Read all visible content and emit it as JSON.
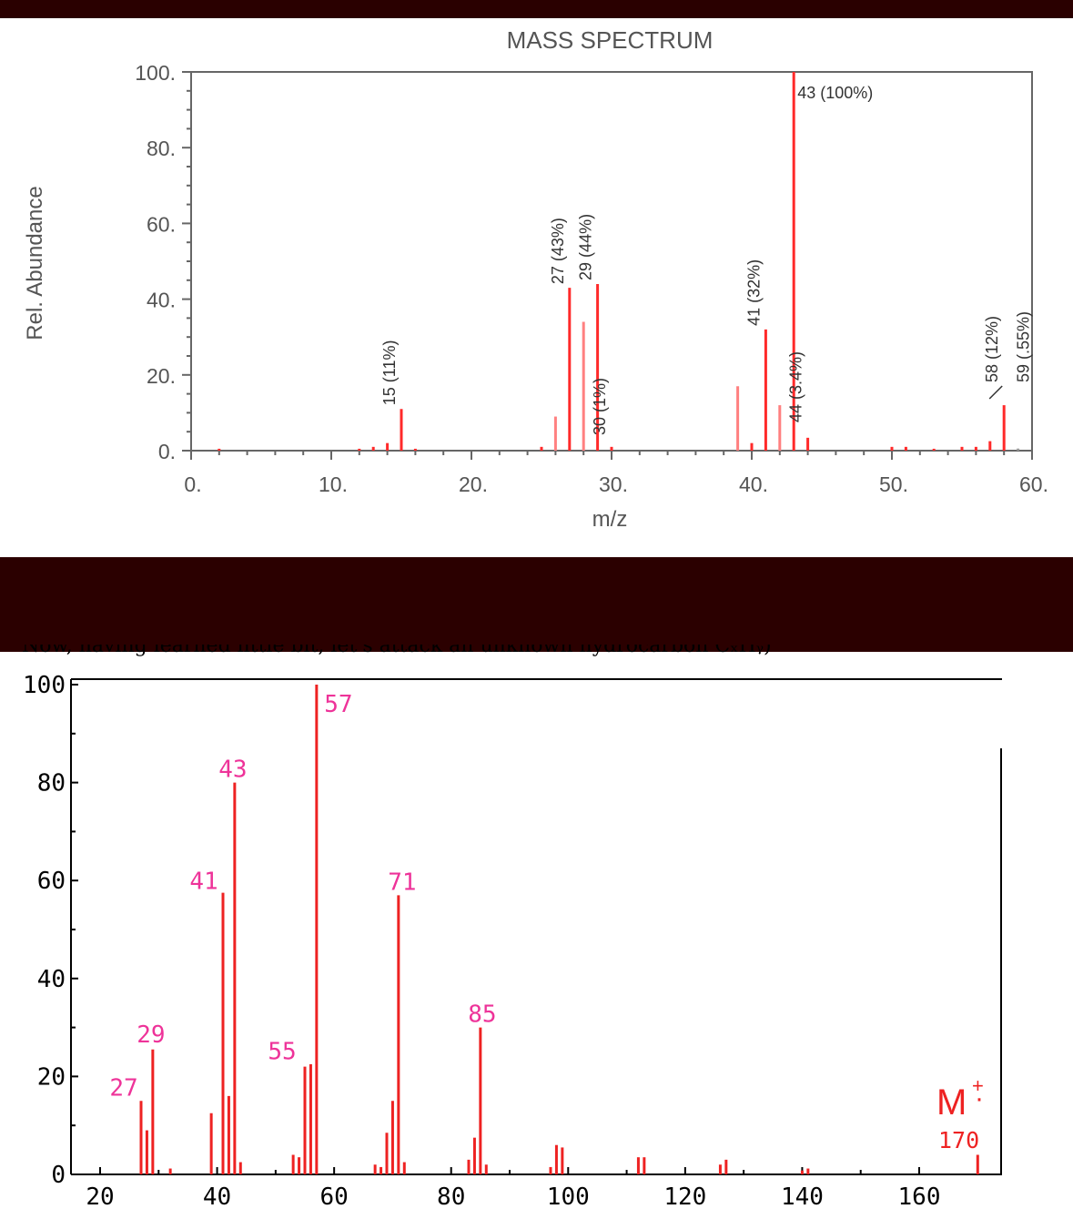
{
  "page": {
    "caption_fragment": "Now, having learned little bit, let's attack an unknown hydrocarbon CₓHᵧ)"
  },
  "colors": {
    "peak": "#ff2a2a",
    "faint_peak": "#ff8080",
    "label_magenta": "#ee3399",
    "molecular_ion": "#ee2222",
    "band": "#2b0000",
    "frame": "#666666"
  },
  "chart_data": [
    {
      "type": "bar",
      "title": "MASS SPECTRUM",
      "xlabel": "m/z",
      "ylabel": "Rel. Abundance",
      "xlim": [
        0,
        60
      ],
      "ylim": [
        0,
        100
      ],
      "xticks": [
        "0.",
        "10.",
        "20.",
        "30.",
        "40.",
        "50.",
        "60."
      ],
      "yticks": [
        "0.",
        "20.",
        "40.",
        "60.",
        "80.",
        "100."
      ],
      "grid": false,
      "peaks": [
        {
          "mz": 2,
          "abundance": 0.5
        },
        {
          "mz": 12,
          "abundance": 0.5
        },
        {
          "mz": 13,
          "abundance": 1
        },
        {
          "mz": 14,
          "abundance": 2
        },
        {
          "mz": 15,
          "abundance": 11
        },
        {
          "mz": 16,
          "abundance": 0.5
        },
        {
          "mz": 25,
          "abundance": 1
        },
        {
          "mz": 26,
          "abundance": 9
        },
        {
          "mz": 27,
          "abundance": 43
        },
        {
          "mz": 28,
          "abundance": 34
        },
        {
          "mz": 29,
          "abundance": 44
        },
        {
          "mz": 30,
          "abundance": 1
        },
        {
          "mz": 39,
          "abundance": 17
        },
        {
          "mz": 40,
          "abundance": 2
        },
        {
          "mz": 41,
          "abundance": 32
        },
        {
          "mz": 42,
          "abundance": 12
        },
        {
          "mz": 43,
          "abundance": 100
        },
        {
          "mz": 44,
          "abundance": 3.4
        },
        {
          "mz": 50,
          "abundance": 1
        },
        {
          "mz": 51,
          "abundance": 1
        },
        {
          "mz": 53,
          "abundance": 0.5
        },
        {
          "mz": 55,
          "abundance": 1
        },
        {
          "mz": 56,
          "abundance": 1
        },
        {
          "mz": 57,
          "abundance": 2.5
        },
        {
          "mz": 58,
          "abundance": 12
        },
        {
          "mz": 59,
          "abundance": 0.55
        }
      ],
      "peak_labels": [
        {
          "mz": 15,
          "text": "15 (11%)",
          "orient": "vertical"
        },
        {
          "mz": 27,
          "text": "27 (43%)",
          "orient": "vertical"
        },
        {
          "mz": 29,
          "text": "29 (44%)",
          "orient": "vertical"
        },
        {
          "mz": 30,
          "text": "30 (1%)",
          "orient": "vertical"
        },
        {
          "mz": 41,
          "text": "41 (32%)",
          "orient": "vertical"
        },
        {
          "mz": 43,
          "text": "43 (100%)",
          "orient": "horizontal"
        },
        {
          "mz": 44,
          "text": "44 (3.4%)",
          "orient": "vertical"
        },
        {
          "mz": 58,
          "text": "58 (12%)",
          "orient": "vertical"
        },
        {
          "mz": 59,
          "text": "59 (.55%)",
          "orient": "vertical"
        }
      ]
    },
    {
      "type": "bar",
      "title": "",
      "xlabel": "",
      "ylabel": "",
      "xlim": [
        15,
        170
      ],
      "ylim": [
        0,
        100
      ],
      "xticks": [
        "20",
        "40",
        "60",
        "80",
        "100",
        "120",
        "140",
        "160"
      ],
      "yticks": [
        "0",
        "20",
        "40",
        "60",
        "80",
        "100"
      ],
      "grid": false,
      "peaks": [
        {
          "mz": 27,
          "abundance": 15
        },
        {
          "mz": 28,
          "abundance": 9
        },
        {
          "mz": 29,
          "abundance": 25.5
        },
        {
          "mz": 32,
          "abundance": 1.2
        },
        {
          "mz": 39,
          "abundance": 12.5
        },
        {
          "mz": 41,
          "abundance": 57.5
        },
        {
          "mz": 42,
          "abundance": 16
        },
        {
          "mz": 43,
          "abundance": 80
        },
        {
          "mz": 44,
          "abundance": 2.5
        },
        {
          "mz": 53,
          "abundance": 4
        },
        {
          "mz": 54,
          "abundance": 3.5
        },
        {
          "mz": 55,
          "abundance": 22
        },
        {
          "mz": 56,
          "abundance": 22.5
        },
        {
          "mz": 57,
          "abundance": 100
        },
        {
          "mz": 67,
          "abundance": 2
        },
        {
          "mz": 68,
          "abundance": 1.5
        },
        {
          "mz": 69,
          "abundance": 8.5
        },
        {
          "mz": 70,
          "abundance": 15
        },
        {
          "mz": 71,
          "abundance": 57
        },
        {
          "mz": 72,
          "abundance": 2.5
        },
        {
          "mz": 83,
          "abundance": 3
        },
        {
          "mz": 84,
          "abundance": 7.5
        },
        {
          "mz": 85,
          "abundance": 30
        },
        {
          "mz": 86,
          "abundance": 2
        },
        {
          "mz": 97,
          "abundance": 1.5
        },
        {
          "mz": 98,
          "abundance": 6
        },
        {
          "mz": 99,
          "abundance": 5.5
        },
        {
          "mz": 112,
          "abundance": 3.5
        },
        {
          "mz": 113,
          "abundance": 3.5
        },
        {
          "mz": 126,
          "abundance": 2
        },
        {
          "mz": 127,
          "abundance": 3
        },
        {
          "mz": 140,
          "abundance": 0.8
        },
        {
          "mz": 141,
          "abundance": 1.2
        },
        {
          "mz": 170,
          "abundance": 4
        }
      ],
      "peak_labels": [
        {
          "mz": 27,
          "text": "27"
        },
        {
          "mz": 29,
          "text": "29"
        },
        {
          "mz": 41,
          "text": "41"
        },
        {
          "mz": 43,
          "text": "43"
        },
        {
          "mz": 55,
          "text": "55"
        },
        {
          "mz": 57,
          "text": "57"
        },
        {
          "mz": 71,
          "text": "71"
        },
        {
          "mz": 85,
          "text": "85"
        }
      ],
      "molecular_ion": {
        "symbol": "M",
        "charge": "+",
        "dot": "·",
        "mz_label": "170"
      }
    }
  ]
}
